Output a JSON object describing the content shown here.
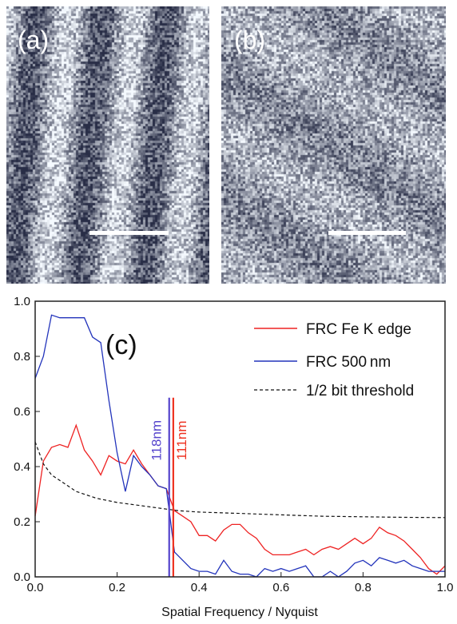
{
  "panels": [
    {
      "label": "(a)"
    },
    {
      "label": "(b)"
    }
  ],
  "colors": {
    "fe_series": "#ee2222",
    "nm_series": "#2233bb",
    "threshold": "#111111",
    "marker_118": "#5544cc",
    "marker_111": "#ee3322"
  },
  "chart_data": {
    "type": "line",
    "panel_label": "(c)",
    "xlabel": "Spatial Frequency / Nyquist",
    "ylabel": "",
    "xlim": [
      0.0,
      1.0
    ],
    "ylim": [
      0.0,
      1.0
    ],
    "x_ticks": [
      "0.0",
      "0.2",
      "0.4",
      "0.6",
      "0.8",
      "1.0"
    ],
    "y_ticks": [
      "0.0",
      "0.2",
      "0.4",
      "0.6",
      "0.8",
      "1.0"
    ],
    "grid": false,
    "legend_position": "top-right",
    "series": [
      {
        "name": "FRC Fe K edge",
        "color": "#ee2222",
        "style": "solid",
        "x": [
          0.0,
          0.02,
          0.04,
          0.06,
          0.08,
          0.1,
          0.12,
          0.14,
          0.16,
          0.18,
          0.2,
          0.22,
          0.24,
          0.26,
          0.28,
          0.3,
          0.32,
          0.34,
          0.36,
          0.38,
          0.4,
          0.42,
          0.44,
          0.46,
          0.48,
          0.5,
          0.52,
          0.54,
          0.56,
          0.58,
          0.6,
          0.62,
          0.64,
          0.66,
          0.68,
          0.7,
          0.72,
          0.74,
          0.76,
          0.78,
          0.8,
          0.82,
          0.84,
          0.86,
          0.88,
          0.9,
          0.92,
          0.94,
          0.96,
          0.98,
          1.0
        ],
        "y": [
          0.22,
          0.42,
          0.47,
          0.48,
          0.47,
          0.55,
          0.46,
          0.42,
          0.37,
          0.44,
          0.42,
          0.41,
          0.46,
          0.41,
          0.37,
          0.33,
          0.32,
          0.24,
          0.22,
          0.2,
          0.15,
          0.15,
          0.13,
          0.17,
          0.19,
          0.19,
          0.16,
          0.14,
          0.1,
          0.08,
          0.08,
          0.08,
          0.09,
          0.1,
          0.08,
          0.1,
          0.11,
          0.1,
          0.12,
          0.14,
          0.12,
          0.14,
          0.18,
          0.16,
          0.15,
          0.13,
          0.1,
          0.07,
          0.03,
          0.01,
          0.04
        ]
      },
      {
        "name": "FRC 500 nm",
        "color": "#2233bb",
        "style": "solid",
        "x": [
          0.0,
          0.02,
          0.04,
          0.06,
          0.08,
          0.1,
          0.12,
          0.14,
          0.16,
          0.18,
          0.2,
          0.22,
          0.24,
          0.26,
          0.28,
          0.3,
          0.32,
          0.34,
          0.36,
          0.38,
          0.4,
          0.42,
          0.44,
          0.46,
          0.48,
          0.5,
          0.52,
          0.54,
          0.56,
          0.58,
          0.6,
          0.62,
          0.64,
          0.66,
          0.68,
          0.7,
          0.72,
          0.74,
          0.76,
          0.78,
          0.8,
          0.82,
          0.84,
          0.86,
          0.88,
          0.9,
          0.92,
          0.94,
          0.96,
          0.98,
          1.0
        ],
        "y": [
          0.72,
          0.8,
          0.95,
          0.94,
          0.94,
          0.94,
          0.94,
          0.87,
          0.85,
          0.64,
          0.45,
          0.31,
          0.44,
          0.4,
          0.37,
          0.33,
          0.32,
          0.09,
          0.06,
          0.03,
          0.02,
          0.02,
          0.01,
          0.06,
          0.02,
          0.01,
          0.01,
          0.0,
          0.03,
          0.02,
          0.03,
          0.02,
          0.03,
          0.04,
          0.0,
          0.0,
          0.02,
          0.0,
          0.02,
          0.05,
          0.06,
          0.04,
          0.07,
          0.06,
          0.05,
          0.06,
          0.04,
          0.03,
          0.02,
          0.02,
          0.02
        ]
      },
      {
        "name": "1/2 bit threshold",
        "color": "#111111",
        "style": "dashed",
        "x": [
          0.0,
          0.02,
          0.04,
          0.06,
          0.08,
          0.1,
          0.15,
          0.2,
          0.25,
          0.3,
          0.35,
          0.4,
          0.5,
          0.6,
          0.7,
          0.8,
          0.9,
          1.0
        ],
        "y": [
          0.49,
          0.41,
          0.37,
          0.35,
          0.33,
          0.31,
          0.285,
          0.27,
          0.26,
          0.25,
          0.24,
          0.235,
          0.23,
          0.225,
          0.22,
          0.218,
          0.216,
          0.215
        ]
      }
    ],
    "markers": [
      {
        "label": "118nm",
        "x": 0.327,
        "y_top": 0.65,
        "color": "#5544cc"
      },
      {
        "label": "111nm",
        "x": 0.337,
        "y_top": 0.65,
        "color": "#ee3322"
      }
    ]
  }
}
